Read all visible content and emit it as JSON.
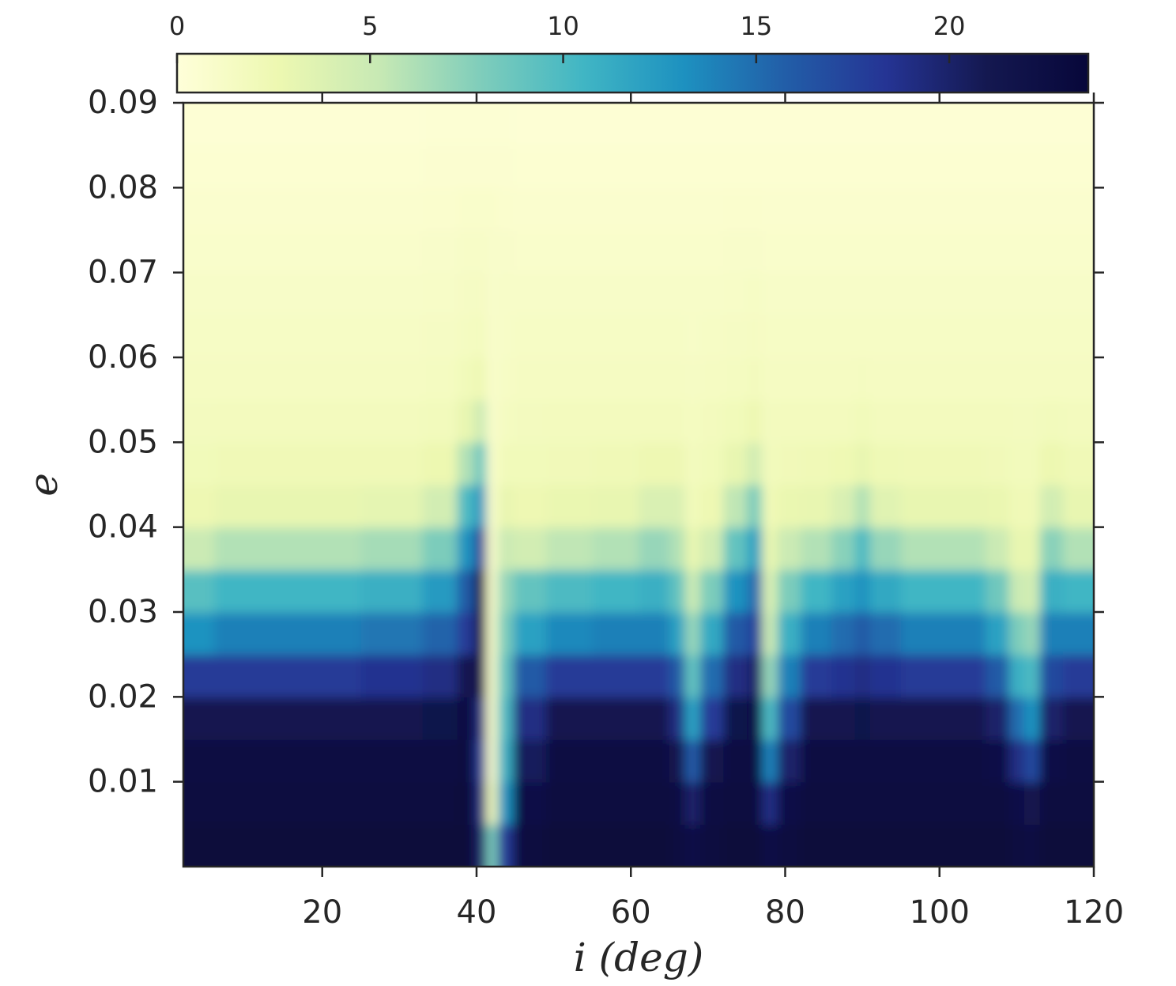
{
  "chart_data": {
    "type": "heatmap",
    "xlabel": "i (deg)",
    "ylabel": "e",
    "xlim": [
      2,
      120
    ],
    "ylim": [
      0,
      0.09
    ],
    "xticks": [
      20,
      40,
      60,
      80,
      100,
      120
    ],
    "yticks": [
      0.01,
      0.02,
      0.03,
      0.04,
      0.05,
      0.06,
      0.07,
      0.08,
      0.09
    ],
    "zlim": [
      0,
      23.6
    ],
    "zticks": [
      0,
      5,
      10,
      15,
      20
    ],
    "colormap": [
      "#ffffd9",
      "#edf8b1",
      "#c7e9b4",
      "#7fcdbb",
      "#41b6c4",
      "#1d91c0",
      "#225ea8",
      "#253494",
      "#141850",
      "#07073a"
    ],
    "x": [
      2,
      10,
      20,
      30,
      36,
      39,
      40.5,
      42,
      43.5,
      46,
      52,
      58,
      64,
      66,
      68,
      70,
      74,
      76,
      78,
      80,
      84,
      88,
      90,
      92,
      98,
      104,
      108,
      110,
      112,
      114,
      118,
      120
    ],
    "y": [
      0.0025,
      0.0075,
      0.0125,
      0.0175,
      0.0225,
      0.0275,
      0.0325,
      0.0375,
      0.0425,
      0.0475,
      0.0525,
      0.0575,
      0.0625,
      0.0675,
      0.0725,
      0.0775,
      0.0825,
      0.0875
    ],
    "z": [
      [
        23.5,
        23,
        22.5,
        21,
        18,
        13,
        9.5,
        5,
        2.5,
        2,
        1.7,
        1.5,
        1.3,
        1.1,
        0.9,
        0.7,
        0.5,
        0.3
      ],
      [
        23.5,
        23,
        22.5,
        21,
        18,
        14,
        10.5,
        6,
        3,
        2.2,
        1.8,
        1.5,
        1.3,
        1.1,
        0.9,
        0.7,
        0.5,
        0.3
      ],
      [
        23.5,
        23,
        22.5,
        21,
        18,
        14,
        10.5,
        6,
        3,
        2.2,
        1.8,
        1.5,
        1.3,
        1.1,
        0.9,
        0.7,
        0.5,
        0.3
      ],
      [
        23.5,
        23,
        22.5,
        21,
        18.5,
        14.5,
        11,
        6.5,
        3.2,
        2.2,
        1.8,
        1.5,
        1.3,
        1.1,
        0.9,
        0.7,
        0.5,
        0.3
      ],
      [
        23.5,
        23,
        22.5,
        21.5,
        19,
        15.5,
        12.5,
        8,
        4.5,
        2.6,
        1.9,
        1.6,
        1.4,
        1.2,
        1,
        0.8,
        0.6,
        0.4
      ],
      [
        23.5,
        23.5,
        23,
        22.5,
        21,
        18,
        16,
        13,
        10,
        6,
        3,
        2,
        1.6,
        1.4,
        1.2,
        0.9,
        0.6,
        0.4
      ],
      [
        20,
        19,
        18,
        19,
        21,
        22,
        22,
        18,
        13,
        9,
        5,
        2.5,
        1.8,
        1.5,
        1.2,
        0.9,
        0.6,
        0.4
      ],
      [
        8,
        2,
        1,
        1,
        1,
        1,
        1,
        1,
        1,
        1,
        1,
        1,
        1,
        1,
        1,
        0.9,
        0.6,
        0.4
      ],
      [
        18,
        13,
        11,
        10,
        9,
        8,
        7,
        5,
        3,
        2,
        1.6,
        1.3,
        1.2,
        1.1,
        1,
        0.8,
        0.6,
        0.4
      ],
      [
        23,
        22,
        20.5,
        19,
        16,
        12,
        9,
        4.5,
        2.5,
        2,
        1.7,
        1.5,
        1.3,
        1.1,
        0.9,
        0.7,
        0.5,
        0.3
      ],
      [
        23.5,
        23,
        22.5,
        21,
        18,
        13.5,
        10,
        5.5,
        2.8,
        2.1,
        1.8,
        1.5,
        1.3,
        1.1,
        0.9,
        0.7,
        0.5,
        0.3
      ],
      [
        23.5,
        23,
        22.5,
        21,
        18,
        14,
        10.5,
        6,
        3,
        2.2,
        1.8,
        1.5,
        1.3,
        1.1,
        0.9,
        0.7,
        0.5,
        0.3
      ],
      [
        23.5,
        23,
        22.5,
        21,
        18,
        14,
        11,
        7,
        4,
        2.5,
        1.8,
        1.5,
        1.3,
        1.1,
        0.9,
        0.7,
        0.5,
        0.3
      ],
      [
        23,
        22.5,
        21,
        19,
        16,
        12,
        9,
        6,
        4,
        2.5,
        1.8,
        1.5,
        1.3,
        1.1,
        0.9,
        0.7,
        0.5,
        0.3
      ],
      [
        22,
        20,
        16,
        12,
        9,
        7,
        5,
        3,
        2,
        1.8,
        1.6,
        1.4,
        1.2,
        1.1,
        0.9,
        0.7,
        0.5,
        0.3
      ],
      [
        23,
        22.5,
        21,
        18,
        15,
        11.5,
        8,
        4.5,
        2.5,
        2,
        1.8,
        1.5,
        1.3,
        1.1,
        0.9,
        0.7,
        0.5,
        0.3
      ],
      [
        23.5,
        23,
        22.5,
        21.5,
        19,
        16,
        13,
        9,
        5.5,
        3,
        2,
        1.6,
        1.4,
        1.2,
        1,
        0.8,
        0.5,
        0.3
      ],
      [
        23.5,
        23,
        22.5,
        22,
        20,
        17.5,
        15,
        12,
        8,
        4.5,
        2.5,
        1.8,
        1.5,
        1.3,
        1,
        0.8,
        0.5,
        0.3
      ],
      [
        22,
        19,
        14,
        10,
        7,
        5,
        4,
        3,
        2.2,
        1.9,
        1.7,
        1.5,
        1.3,
        1.1,
        0.9,
        0.7,
        0.5,
        0.3
      ],
      [
        23,
        22,
        20,
        17,
        14,
        11,
        8,
        5,
        2.8,
        2.1,
        1.8,
        1.5,
        1.3,
        1.1,
        0.9,
        0.7,
        0.5,
        0.3
      ],
      [
        23.5,
        23,
        22.5,
        21,
        18,
        14,
        10.5,
        6,
        3,
        2.2,
        1.8,
        1.5,
        1.3,
        1.1,
        0.9,
        0.7,
        0.5,
        0.3
      ],
      [
        23.5,
        23,
        22.5,
        21,
        18.5,
        15,
        12,
        7.5,
        4,
        2.4,
        1.8,
        1.5,
        1.3,
        1.1,
        0.9,
        0.7,
        0.5,
        0.3
      ],
      [
        23.5,
        23,
        22.5,
        21.5,
        19,
        16,
        13,
        10,
        6,
        3,
        2,
        1.6,
        1.3,
        1.1,
        0.9,
        0.7,
        0.5,
        0.3
      ],
      [
        23.5,
        23,
        22.5,
        21,
        18.5,
        15,
        11.5,
        7,
        3.5,
        2.3,
        1.8,
        1.5,
        1.3,
        1.1,
        0.9,
        0.7,
        0.5,
        0.3
      ],
      [
        23.5,
        23,
        22.5,
        21,
        18,
        14,
        10.5,
        6,
        3,
        2.2,
        1.8,
        1.5,
        1.3,
        1.1,
        0.9,
        0.7,
        0.5,
        0.3
      ],
      [
        23.5,
        23,
        22.5,
        21,
        18,
        14,
        10.5,
        6,
        3,
        2.2,
        1.8,
        1.5,
        1.3,
        1.1,
        0.9,
        0.7,
        0.5,
        0.3
      ],
      [
        23.5,
        23,
        22,
        20,
        16,
        12,
        8.5,
        5,
        2.8,
        2.1,
        1.8,
        1.5,
        1.3,
        1.1,
        0.9,
        0.7,
        0.5,
        0.3
      ],
      [
        23,
        22,
        19,
        15,
        11,
        8,
        5,
        3,
        2.2,
        1.9,
        1.7,
        1.5,
        1.3,
        1.1,
        0.9,
        0.7,
        0.5,
        0.3
      ],
      [
        22.5,
        21,
        17,
        13,
        10,
        7,
        4.5,
        3,
        2.2,
        1.9,
        1.7,
        1.5,
        1.3,
        1.1,
        0.9,
        0.7,
        0.5,
        0.3
      ],
      [
        23.5,
        23,
        22,
        20,
        17,
        14,
        11,
        7.5,
        4.5,
        2.6,
        1.9,
        1.5,
        1.3,
        1.1,
        0.9,
        0.7,
        0.5,
        0.3
      ],
      [
        23.5,
        23,
        22.5,
        21,
        18,
        14,
        10.5,
        6,
        3,
        2.2,
        1.8,
        1.5,
        1.3,
        1.1,
        0.9,
        0.7,
        0.5,
        0.3
      ],
      [
        23.5,
        23,
        22.5,
        21,
        18,
        14,
        10.5,
        6,
        3,
        2.2,
        1.8,
        1.5,
        1.3,
        1.1,
        0.9,
        0.7,
        0.5,
        0.3
      ]
    ]
  }
}
